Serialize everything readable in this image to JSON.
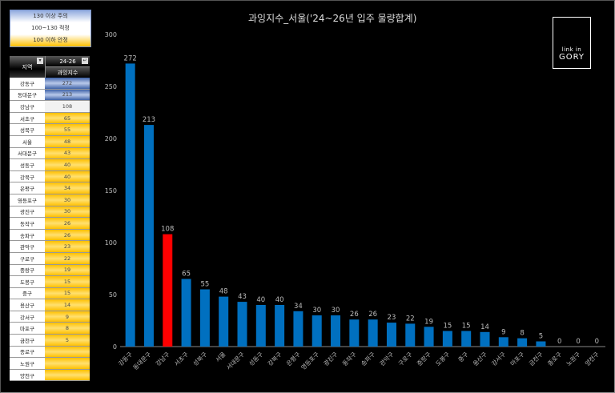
{
  "legend": [
    {
      "label": "130 이상 주의",
      "tone": "blue"
    },
    {
      "label": "100~130 적정",
      "tone": "white"
    },
    {
      "label": "100 이하 안정",
      "tone": "gold"
    }
  ],
  "table": {
    "col_region": "지역",
    "col_period": "24-26",
    "col_index": "과잉지수",
    "filter_icon": "filter-dropdown-icon"
  },
  "logo": {
    "line1": "link in",
    "line2": "GORY"
  },
  "chart_data": {
    "type": "bar",
    "title": "과잉지수_서울('24~26년 입주 물량합계)",
    "categories": [
      "강동구",
      "동대문구",
      "강남구",
      "서초구",
      "성북구",
      "서울",
      "서대문구",
      "성동구",
      "강북구",
      "은평구",
      "영등포구",
      "광진구",
      "동작구",
      "송파구",
      "관악구",
      "구로구",
      "중랑구",
      "도봉구",
      "중구",
      "용산구",
      "강서구",
      "마포구",
      "금천구",
      "종로구",
      "노원구",
      "양천구"
    ],
    "values": [
      272,
      213,
      108,
      65,
      55,
      48,
      43,
      40,
      40,
      34,
      30,
      30,
      26,
      26,
      23,
      22,
      19,
      15,
      15,
      14,
      9,
      8,
      5,
      0,
      0,
      0
    ],
    "highlight_index": 2,
    "ylim": [
      0,
      300
    ],
    "yticks": [
      0,
      50,
      100,
      150,
      200,
      250,
      300
    ],
    "colors": {
      "bar": "#0070c0",
      "highlight": "#ff0000"
    },
    "xlabel": "",
    "ylabel": "",
    "grid": false
  }
}
